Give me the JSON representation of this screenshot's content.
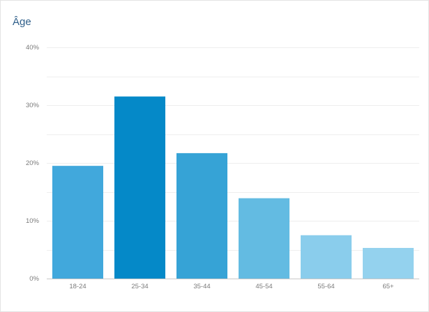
{
  "panel": {
    "title": "Âge"
  },
  "chart_data": {
    "type": "bar",
    "title": "Âge",
    "xlabel": "",
    "ylabel": "",
    "categories": [
      "18-24",
      "25-34",
      "35-44",
      "45-54",
      "55-64",
      "65+"
    ],
    "values": [
      19.5,
      31.5,
      21.7,
      13.9,
      7.5,
      5.3
    ],
    "ylim": [
      0,
      40
    ],
    "y_ticks": [
      "0%",
      "10%",
      "20%",
      "30%",
      "40%"
    ],
    "grid": true,
    "legend": "none",
    "colors": [
      "#41a8dc",
      "#0589c8",
      "#36a3d6",
      "#63bbe2",
      "#8acdec",
      "#94d2ee"
    ],
    "gridline_color": "#eeeeee",
    "axis_color": "#c8c8c8"
  }
}
